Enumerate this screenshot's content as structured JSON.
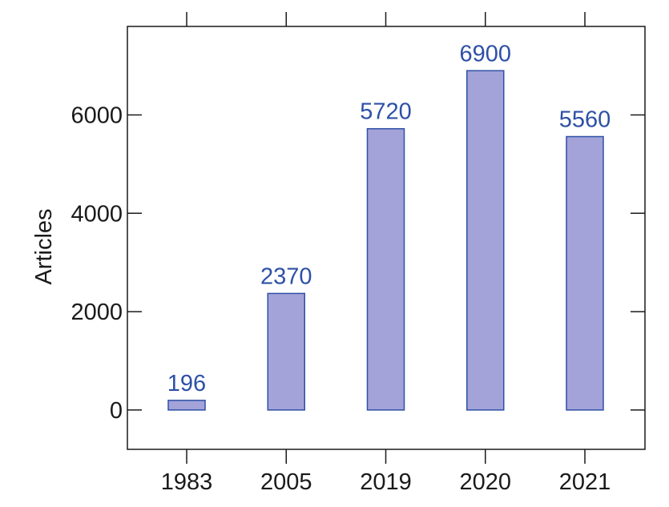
{
  "chart_data": {
    "type": "bar",
    "categories": [
      "1983",
      "2005",
      "2019",
      "2020",
      "2021"
    ],
    "values": [
      196,
      2370,
      5720,
      6900,
      5560
    ],
    "data_labels": [
      "196",
      "2370",
      "5720",
      "6900",
      "5560"
    ],
    "title": "",
    "xlabel": "",
    "ylabel": "Articles",
    "ylim": [
      -800,
      7800
    ],
    "yticks": [
      0,
      2000,
      4000,
      6000
    ],
    "ytick_labels": [
      "0",
      "2000",
      "4000",
      "6000"
    ],
    "grid": false,
    "legend": "none",
    "colors": {
      "bar_fill": "#a3a3d9",
      "bar_stroke": "#2e50a6",
      "data_label": "#2e50a6",
      "axis": "#1a1a1a"
    }
  }
}
